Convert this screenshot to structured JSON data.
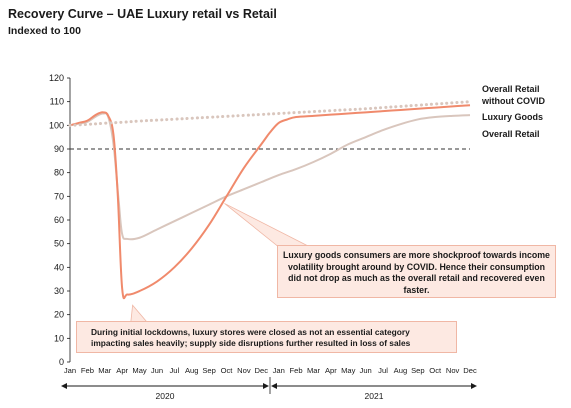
{
  "title": "Recovery Curve – UAE Luxury retail vs Retail",
  "subtitle": "Indexed to 100",
  "colors": {
    "luxury": "#f08a6c",
    "overall": "#d9c6bd",
    "without_covid": "#d9c6bd",
    "reference_line": "#333333",
    "annotation_fill": "#fde9e2",
    "annotation_border": "#f0b7a5"
  },
  "annotations": {
    "luxury_resilience": "Luxury goods consumers are more shockproof towards income volatility brought around by COVID. Hence their consumption did not drop as much as the overall retail and recovered even faster.",
    "lockdown": "During initial lockdowns, luxury stores were closed as not an essential category impacting sales heavily; supply side disruptions further resulted in loss of sales"
  },
  "chart_data": {
    "type": "line",
    "title": "Recovery Curve – UAE Luxury retail vs Retail",
    "subtitle": "Indexed to 100",
    "xlabel": "",
    "ylabel": "",
    "ylim": [
      0,
      120
    ],
    "yticks": [
      0,
      10,
      20,
      30,
      40,
      50,
      60,
      70,
      80,
      90,
      100,
      110,
      120
    ],
    "grid": false,
    "reference_line": 90,
    "legend_placement": "right",
    "categories": [
      "Jan",
      "Feb",
      "Mar",
      "Apr",
      "May",
      "Jun",
      "Jul",
      "Aug",
      "Sep",
      "Oct",
      "Nov",
      "Dec",
      "Jan",
      "Feb",
      "Mar",
      "Apr",
      "May",
      "Jun",
      "Jul",
      "Aug",
      "Sep",
      "Oct",
      "Nov",
      "Dec"
    ],
    "year_groups": [
      {
        "label": "2020",
        "start": 0,
        "end": 11
      },
      {
        "label": "2021",
        "start": 12,
        "end": 23
      }
    ],
    "series": [
      {
        "name": "Overall Retail without COVID",
        "style": "dotted",
        "color": "#d9c6bd",
        "x": [
          0,
          1,
          2,
          3,
          4,
          5,
          6,
          7,
          8,
          9,
          10,
          11,
          12,
          13,
          14,
          15,
          16,
          17,
          18,
          19,
          20,
          21,
          22,
          23
        ],
        "values": [
          100,
          100.4,
          100.9,
          101.3,
          101.8,
          102.2,
          102.6,
          103.0,
          103.4,
          103.8,
          104.2,
          104.6,
          105.0,
          105.4,
          105.8,
          106.2,
          106.6,
          107.0,
          107.5,
          108.0,
          108.5,
          109.0,
          109.5,
          110.0
        ]
      },
      {
        "name": "Luxury Goods",
        "style": "solid",
        "color": "#f08a6c",
        "x": [
          0,
          0.5,
          1,
          1.5,
          1.9,
          2.2,
          2.5,
          2.75,
          3,
          3.3,
          4,
          5,
          6,
          7,
          8,
          9,
          10,
          11,
          11.5,
          12,
          12.5,
          13,
          14,
          15,
          16,
          17,
          18,
          19,
          20,
          21,
          22,
          23
        ],
        "values": [
          100,
          101,
          102,
          104.5,
          105.5,
          104,
          96,
          70,
          31,
          28.5,
          30,
          34,
          40,
          48,
          58,
          70,
          82,
          92,
          97,
          101,
          102.5,
          103.5,
          104,
          104.5,
          105,
          105.5,
          106,
          106.5,
          107,
          107.5,
          108,
          108.5
        ]
      },
      {
        "name": "Overall Retail",
        "style": "solid",
        "color": "#d9c6bd",
        "x": [
          0,
          0.5,
          1,
          1.5,
          1.9,
          2.2,
          2.5,
          2.8,
          3,
          3.3,
          4,
          5,
          6,
          7,
          8,
          9,
          10,
          11,
          12,
          13,
          14,
          15,
          16,
          17,
          18,
          19,
          20,
          21,
          22,
          23
        ],
        "values": [
          100,
          100.7,
          101.5,
          103.8,
          105,
          103.5,
          92,
          68,
          54,
          52,
          52.5,
          56,
          59.5,
          63,
          66.5,
          70,
          73,
          76,
          79,
          81.5,
          84.5,
          88,
          92,
          95,
          98,
          100.5,
          102.5,
          103.5,
          104,
          104.3
        ]
      }
    ]
  }
}
